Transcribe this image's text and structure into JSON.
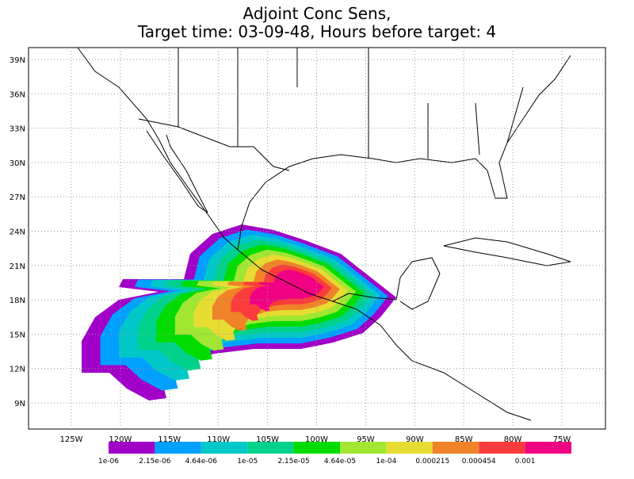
{
  "title": [
    "Adjoint Conc Sens,",
    "Target time: 03-09-48, Hours before target: 4"
  ],
  "lat_labels": [
    "39N",
    "36N",
    "33N",
    "30N",
    "27N",
    "24N",
    "21N",
    "18N",
    "15N",
    "12N",
    "9N"
  ],
  "lon_labels": [
    "125W",
    "120W",
    "115W",
    "110W",
    "105W",
    "100W",
    "95W",
    "90W",
    "85W",
    "80W",
    "75W"
  ],
  "colorbar": {
    "colors": [
      "#a000c8",
      "#00a0ff",
      "#00c8c8",
      "#00d28c",
      "#00dc00",
      "#a0e632",
      "#e6dc32",
      "#f08228",
      "#fa3c3c",
      "#f00082"
    ],
    "labels": [
      "1e-06",
      "2.15e-06",
      "4.64e-06",
      "1e-05",
      "2.15e-05",
      "4.64e-05",
      "1e-04",
      "0.000215",
      "0.000454",
      "0.001"
    ]
  }
}
